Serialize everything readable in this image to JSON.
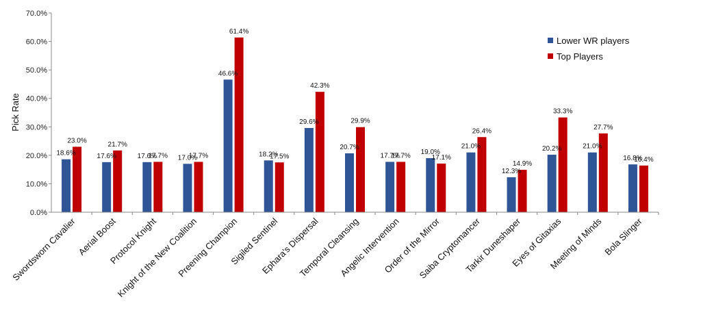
{
  "chart_data": {
    "type": "bar",
    "title": "",
    "xlabel": "",
    "ylabel": "Pick Rate",
    "ylim": [
      0,
      70
    ],
    "yticks": [
      "0.0%",
      "10.0%",
      "20.0%",
      "30.0%",
      "40.0%",
      "50.0%",
      "60.0%",
      "70.0%"
    ],
    "grid": false,
    "legend_position": "top-right",
    "categories": [
      "Swordsworn Cavalier",
      "Aerial Boost",
      "Protocol Knight",
      "Knight of the New Coalition",
      "Preening Champion",
      "Sigiled Sentinel",
      "Ephara's Dispersal",
      "Temporal Cleansing",
      "Angelic Intervention",
      "Order of the Mirror",
      "Saiba Cryptomancer",
      "Tarkir Duneshaper",
      "Eyes of Gitaxias",
      "Meeting of Minds",
      "Bola Slinger"
    ],
    "series": [
      {
        "name": "Lower WR players",
        "color": "#2f5597",
        "values": [
          18.6,
          17.6,
          17.6,
          17.0,
          46.6,
          18.2,
          29.6,
          20.7,
          17.7,
          19.0,
          21.0,
          12.3,
          20.2,
          21.0,
          16.8
        ],
        "labels": [
          "18.6%",
          "17.6%",
          "17.6%",
          "17.0%",
          "46.6%",
          "18.2%",
          "29.6%",
          "20.7%",
          "17.7%",
          "19.0%",
          "21.0%",
          "12.3%",
          "20.2%",
          "21.0%",
          "16.8%"
        ]
      },
      {
        "name": "Top Players",
        "color": "#c00000",
        "values": [
          23.0,
          21.7,
          17.7,
          17.7,
          61.4,
          17.5,
          42.3,
          29.9,
          17.7,
          17.1,
          26.4,
          14.9,
          33.3,
          27.7,
          16.4
        ],
        "labels": [
          "23.0%",
          "21.7%",
          "17.7%",
          "17.7%",
          "61.4%",
          "17.5%",
          "42.3%",
          "29.9%",
          "17.7%",
          "17.1%",
          "26.4%",
          "14.9%",
          "33.3%",
          "27.7%",
          "16.4%"
        ]
      }
    ]
  }
}
